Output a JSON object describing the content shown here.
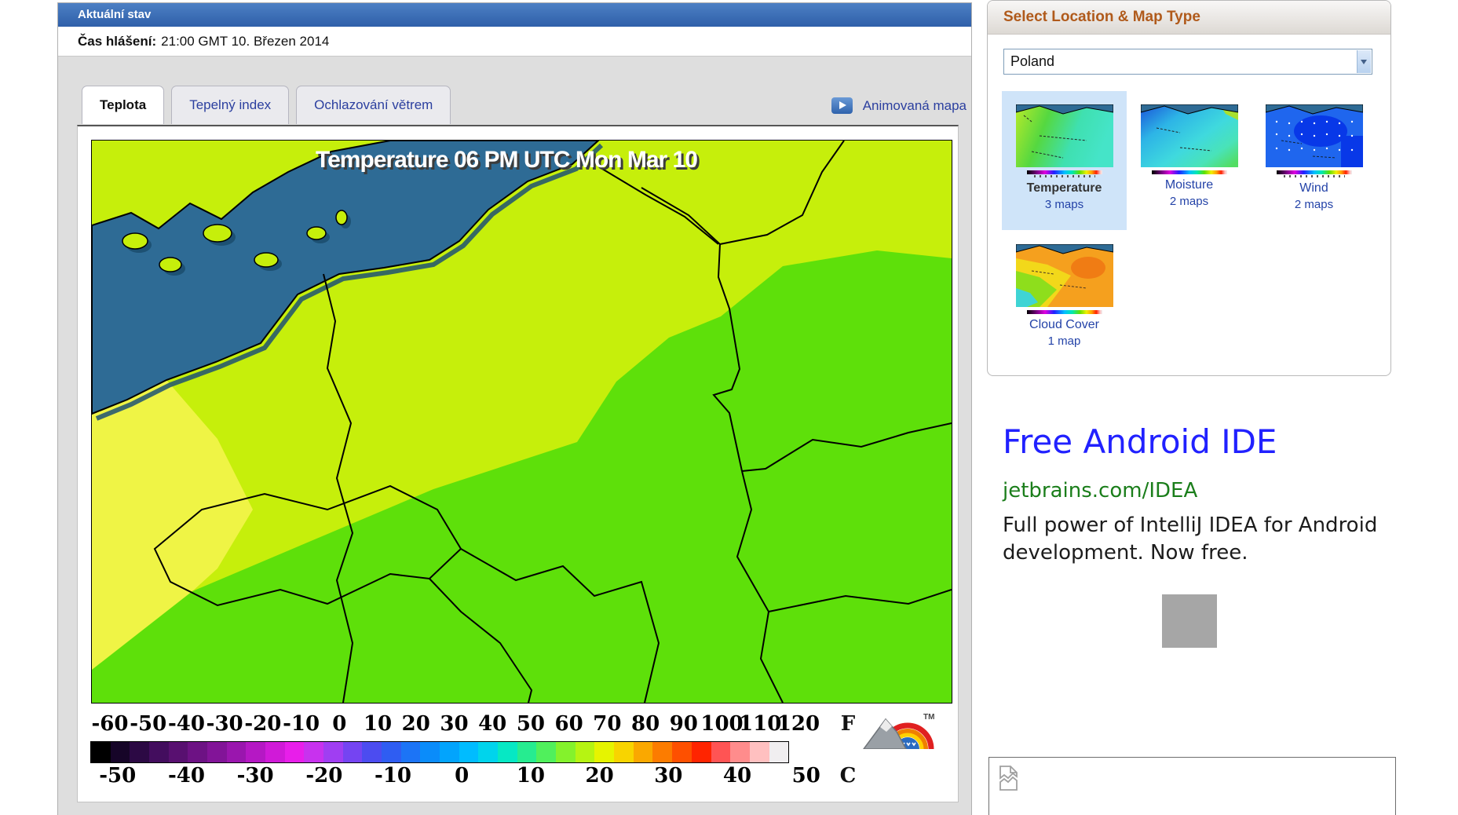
{
  "main_panel": {
    "header": {
      "title": "Aktuální stav"
    },
    "report": {
      "label": "Čas hlášení:",
      "value": "21:00 GMT 10. Březen 2014"
    },
    "tabs": [
      {
        "label": "Teplota",
        "active": true
      },
      {
        "label": "Tepelný index",
        "active": false
      },
      {
        "label": "Ochlazování větrem",
        "active": false
      }
    ],
    "animated_map_label": "Animovaná mapa",
    "map": {
      "title": "Temperature 06 PM UTC Mon Mar 10",
      "logo_tm": "TM",
      "colors": {
        "sea": "#2e6b95",
        "land_warm": "#c6ef0b",
        "land_green": "#5ee00a",
        "land_yellow": "#eff445",
        "border": "#000000",
        "shadow": "#1d5173"
      },
      "scale": {
        "f_label": "F",
        "c_label": "C",
        "f_values": [
          -60,
          -50,
          -40,
          -30,
          -20,
          -10,
          0,
          10,
          20,
          30,
          40,
          50,
          60,
          70,
          80,
          90,
          100,
          110,
          120
        ],
        "c_values": [
          -50,
          -40,
          -30,
          -20,
          -10,
          0,
          10,
          20,
          30,
          40,
          50
        ],
        "bar_colors": [
          "#000000",
          "#160528",
          "#2c0944",
          "#430d5e",
          "#581070",
          "#6d1284",
          "#821498",
          "#9a16ae",
          "#b518c4",
          "#d01ad8",
          "#e81eea",
          "#c832ee",
          "#a03ef2",
          "#7544f2",
          "#4c4cf0",
          "#2f5df2",
          "#1c74f6",
          "#0a8cfa",
          "#02a4fd",
          "#00bcff",
          "#00d4ec",
          "#06e8c4",
          "#26ec90",
          "#50f05c",
          "#84f22c",
          "#b6f412",
          "#e6f400",
          "#f8d400",
          "#faa800",
          "#fc7c00",
          "#fe5000",
          "#ff2400",
          "#ff5454",
          "#ff8c8c",
          "#ffc0c0",
          "#f0eef0"
        ]
      }
    }
  },
  "sidebar": {
    "title": "Select Location & Map Type",
    "location_select": {
      "value": "Poland"
    },
    "map_types": [
      {
        "label": "Temperature",
        "count": "3 maps",
        "selected": true
      },
      {
        "label": "Moisture",
        "count": "2 maps",
        "selected": false
      },
      {
        "label": "Wind",
        "count": "2 maps",
        "selected": false
      },
      {
        "label": "Cloud Cover",
        "count": "1 map",
        "selected": false
      }
    ]
  },
  "ad": {
    "headline": "Free Android IDE",
    "display_url": "jetbrains.com/IDEA",
    "body": "Full power of IntelliJ IDEA for Android development. Now free."
  }
}
